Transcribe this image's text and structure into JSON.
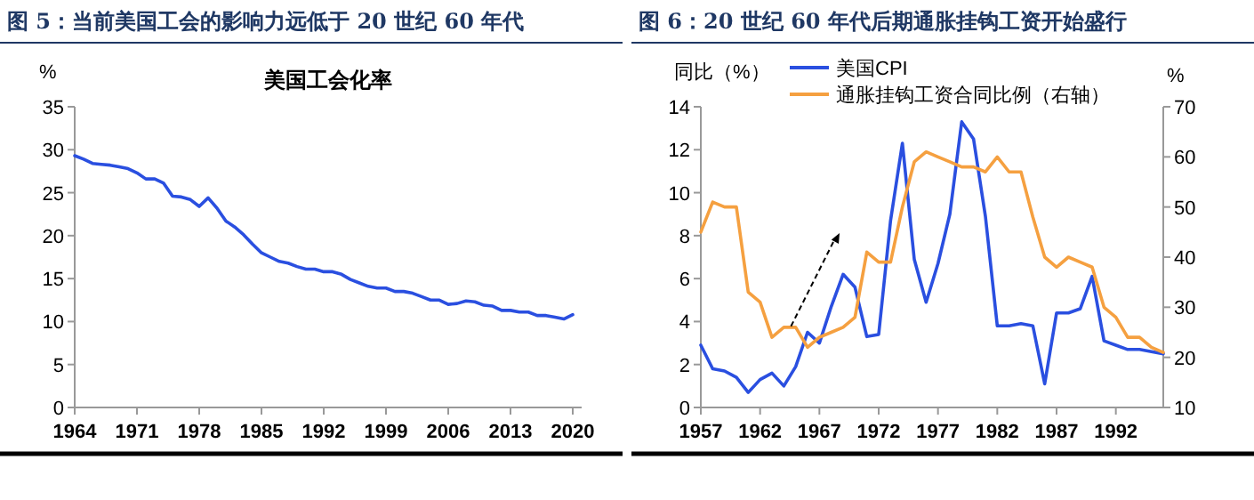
{
  "chart_data": [
    {
      "type": "line",
      "title": "图 5：当前美国工会的影响力远低于 20 世纪 60 年代",
      "subtitle": "美国工会化率",
      "ylabel": "%",
      "x": [
        1964,
        1965,
        1966,
        1967,
        1968,
        1969,
        1970,
        1971,
        1972,
        1973,
        1974,
        1975,
        1976,
        1977,
        1978,
        1979,
        1980,
        1981,
        1982,
        1983,
        1984,
        1985,
        1986,
        1987,
        1988,
        1989,
        1990,
        1991,
        1992,
        1993,
        1994,
        1995,
        1996,
        1997,
        1998,
        1999,
        2000,
        2001,
        2002,
        2003,
        2004,
        2005,
        2006,
        2007,
        2008,
        2009,
        2010,
        2011,
        2012,
        2013,
        2014,
        2015,
        2016,
        2017,
        2018,
        2019,
        2020
      ],
      "series": [
        {
          "color": "#2a4fe0",
          "values": [
            29.3,
            28.9,
            28.4,
            28.3,
            28.2,
            28.0,
            27.8,
            27.3,
            26.6,
            26.6,
            26.1,
            24.6,
            24.5,
            24.2,
            23.4,
            24.4,
            23.2,
            21.7,
            21.0,
            20.1,
            19.0,
            18.0,
            17.5,
            17.0,
            16.8,
            16.4,
            16.1,
            16.1,
            15.8,
            15.8,
            15.5,
            14.9,
            14.5,
            14.1,
            13.9,
            13.9,
            13.5,
            13.5,
            13.3,
            12.9,
            12.5,
            12.5,
            12.0,
            12.1,
            12.4,
            12.3,
            11.9,
            11.8,
            11.3,
            11.3,
            11.1,
            11.1,
            10.7,
            10.7,
            10.5,
            10.3,
            10.8
          ]
        }
      ],
      "xlim": [
        1964,
        2021
      ],
      "ylim": [
        0,
        35
      ],
      "xticks": [
        1964,
        1971,
        1978,
        1985,
        1992,
        1999,
        2006,
        2013,
        2020
      ],
      "yticks": [
        0,
        5,
        10,
        15,
        20,
        25,
        30,
        35
      ]
    },
    {
      "type": "line",
      "title": "图 6：20 世纪 60 年代后期通胀挂钩工资开始盛行",
      "ylabel": "同比（%）",
      "y2label": "%",
      "legend": "top",
      "x": [
        1957,
        1958,
        1959,
        1960,
        1961,
        1962,
        1963,
        1964,
        1965,
        1966,
        1967,
        1968,
        1969,
        1970,
        1971,
        1972,
        1973,
        1974,
        1975,
        1976,
        1977,
        1978,
        1979,
        1980,
        1981,
        1982,
        1983,
        1984,
        1985,
        1986,
        1987,
        1988,
        1989,
        1990,
        1991,
        1992,
        1993,
        1994,
        1995,
        1996
      ],
      "series": [
        {
          "name": "美国CPI",
          "color": "#2a4fe0",
          "values": [
            2.9,
            1.8,
            1.7,
            1.4,
            0.7,
            1.3,
            1.6,
            1.0,
            1.9,
            3.5,
            3.0,
            4.7,
            6.2,
            5.6,
            3.3,
            3.4,
            8.7,
            12.3,
            6.9,
            4.9,
            6.7,
            9.0,
            13.3,
            12.5,
            8.9,
            3.8,
            3.8,
            3.9,
            3.8,
            1.1,
            4.4,
            4.4,
            4.6,
            6.1,
            3.1,
            2.9,
            2.7,
            2.7,
            2.6,
            2.5
          ]
        },
        {
          "name": "通胀挂钩工资合同比例（右轴）",
          "color": "#f5a040",
          "axis": "y2",
          "values": [
            45,
            51,
            50,
            50,
            33,
            31,
            24,
            26,
            26,
            22,
            24,
            25,
            26,
            28,
            41,
            39,
            39,
            50,
            59,
            61,
            60,
            59,
            58,
            58,
            57,
            60,
            57,
            57,
            48,
            40,
            38,
            40,
            39,
            38,
            30,
            28,
            24,
            24,
            22,
            21
          ]
        }
      ],
      "xlim": [
        1957,
        1996
      ],
      "ylim": [
        0,
        14
      ],
      "y2lim": [
        10,
        70
      ],
      "xticks": [
        1957,
        1962,
        1967,
        1972,
        1977,
        1982,
        1987,
        1992
      ],
      "yticks": [
        0,
        2,
        4,
        6,
        8,
        10,
        12,
        14
      ],
      "y2ticks": [
        10,
        20,
        30,
        40,
        50,
        60,
        70
      ]
    }
  ]
}
